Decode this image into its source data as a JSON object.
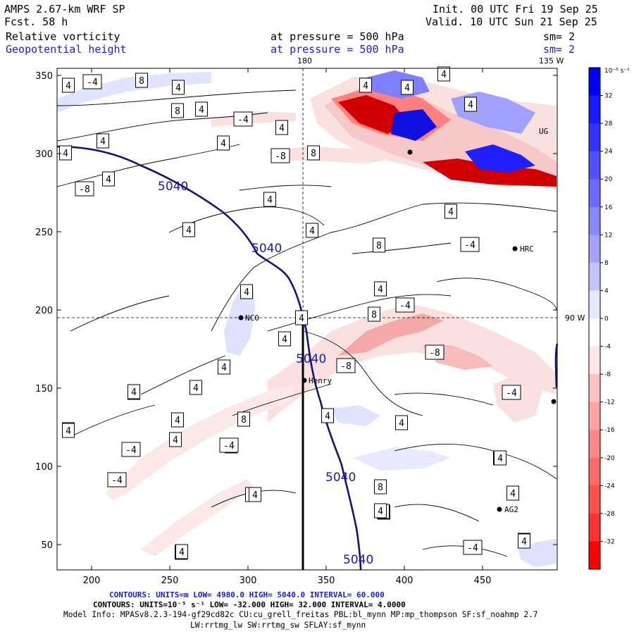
{
  "header": {
    "model": "AMPS 2.67-km WRF SP",
    "fcst": "Fcst.    58 h",
    "init": "Init. 00 UTC Fri 19 Sep 25",
    "valid": "Valid. 10 UTC Sun 21 Sep 25",
    "field1": "Relative vorticity",
    "field2": "Geopotential height",
    "pressure1": "at pressure =  500 hPa",
    "pressure2": "at pressure =  500 hPa",
    "sm1": "sm= 2",
    "sm2": "sm= 2"
  },
  "plot": {
    "x_ticks": [
      "200",
      "250",
      "300",
      "350",
      "400",
      "450"
    ],
    "y_ticks": [
      "350",
      "300",
      "250",
      "200",
      "150",
      "100",
      "50"
    ],
    "meridian_180": "180",
    "meridian_135w": "135 W",
    "meridian_90w": "90 W",
    "stations": [
      "NCO",
      "Henry",
      "HRC",
      "AG2",
      "UG"
    ],
    "height_labels": [
      "5040",
      "5040",
      "5040",
      "5040",
      "5040"
    ],
    "vort_labels": [
      "4",
      "-4",
      "8",
      "4",
      "4",
      "8",
      "4",
      "-4",
      "4",
      "4",
      "4",
      "4",
      "-8",
      "-8",
      "8",
      "4",
      "4",
      "4",
      "4",
      "4",
      "8",
      "-4",
      "4",
      "4",
      "8",
      "-4",
      "4",
      "-8",
      "-8",
      "4",
      "4",
      "4",
      "8",
      "4",
      "4",
      "4",
      "-4",
      "4",
      "-4",
      "4",
      "-4",
      "4",
      "8",
      "4",
      "4",
      "8",
      "4",
      "4",
      "4",
      "4",
      "4",
      "4",
      "4",
      "-4",
      "-4",
      "4",
      "4",
      "4",
      "4",
      "4",
      "4",
      "4",
      "4",
      "4"
    ]
  },
  "colorbar": {
    "unit_label": "10⁻⁵ s⁻¹",
    "ticks": [
      "32",
      "28",
      "24",
      "20",
      "16",
      "12",
      "8",
      "4",
      "0",
      "-4",
      "-8",
      "-12",
      "-16",
      "-20",
      "-24",
      "-28",
      "-32"
    ]
  },
  "footer": {
    "line1": "CONTOURS:  UNITS=m  LOW=  4980.0        HIGH=  5040.0      INTERVAL=  60.000",
    "line2": "CONTOURS:  UNITS=10⁻⁵ s⁻¹  LOW= -32.000        HIGH=  32.000       INTERVAL=  4.0000",
    "line3": "Model Info: MPASv8.2.3-194-gf29cd82c CU:cu_grell_freitas PBL:bl_mynn MP:mp_thompson SF:sf_noahmp 2.7",
    "line4": "LW:rrtmg_lw SW:rrtmg_sw SFLAY:sf_mynn"
  },
  "colors": {
    "height_contour": "#13137a",
    "blue_max": "#0000ff",
    "red_max": "#ff0000"
  }
}
